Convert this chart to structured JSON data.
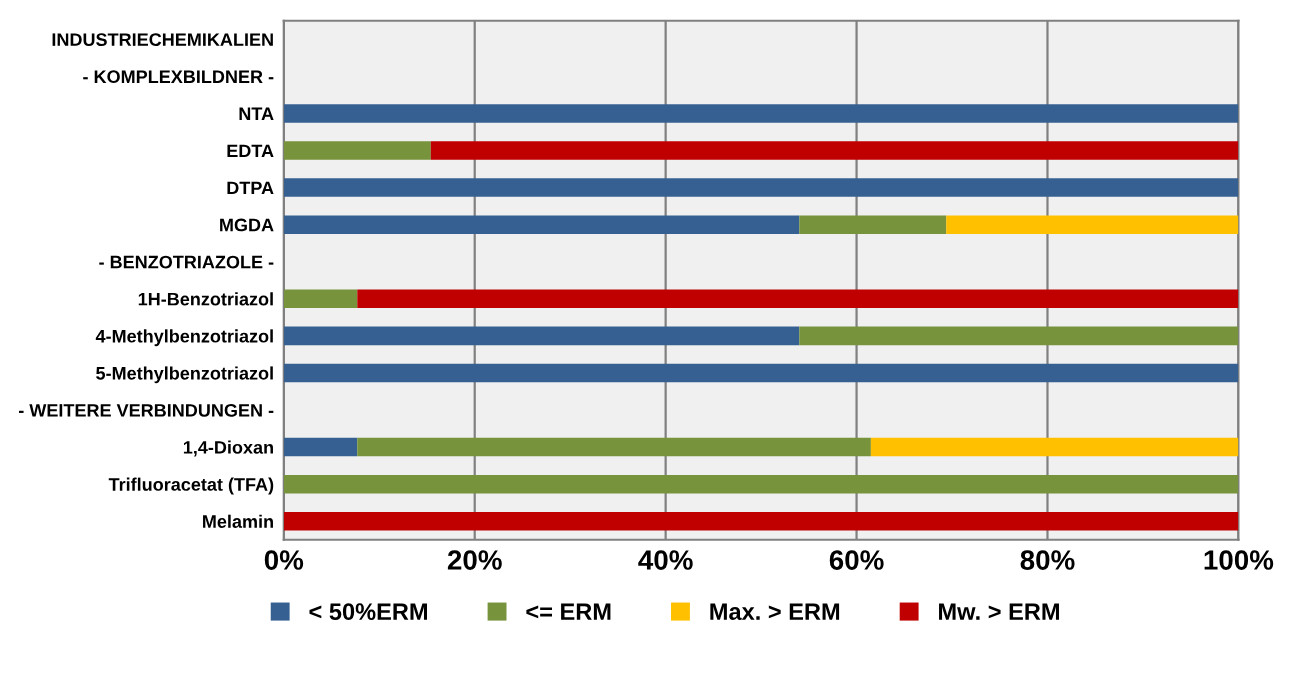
{
  "chart_data": {
    "type": "bar",
    "orientation": "horizontal",
    "stacked": true,
    "categories": [
      "INDUSTRIECHEMIKALIEN",
      "- KOMPLEXBILDNER -",
      "NTA",
      "EDTA",
      "DTPA",
      "MGDA",
      "- BENZOTRIAZOLE -",
      "1H-Benzotriazol",
      "4-Methylbenzotriazol",
      "5-Methylbenzotriazol",
      "- WEITERE VERBINDUNGEN -",
      "1,4-Dioxan",
      "Trifluoracetat (TFA)",
      "Melamin"
    ],
    "series": [
      {
        "name": "< 50%ERM",
        "color": "#376092",
        "values": [
          null,
          null,
          100,
          0,
          100,
          54,
          null,
          0,
          54,
          100,
          null,
          7.7,
          0,
          0
        ]
      },
      {
        "name": "<= ERM",
        "color": "#77933c",
        "values": [
          null,
          null,
          0,
          15.4,
          0,
          15.4,
          null,
          7.7,
          46,
          0,
          null,
          53.8,
          100,
          0
        ]
      },
      {
        "name": "Max. > ERM",
        "color": "#ffc000",
        "values": [
          null,
          null,
          0,
          0,
          0,
          30.6,
          null,
          0,
          0,
          0,
          null,
          38.5,
          0,
          0
        ]
      },
      {
        "name": "Mw. > ERM",
        "color": "#c00000",
        "values": [
          null,
          null,
          0,
          84.6,
          0,
          0,
          null,
          92.3,
          0,
          0,
          null,
          0,
          0,
          100
        ]
      }
    ],
    "xlim": [
      0,
      100
    ],
    "xticks": [
      {
        "value": 0,
        "label": "0%"
      },
      {
        "value": 20,
        "label": "20%"
      },
      {
        "value": 40,
        "label": "40%"
      },
      {
        "value": 60,
        "label": "60%"
      },
      {
        "value": 80,
        "label": "80%"
      },
      {
        "value": 100,
        "label": "100%"
      }
    ],
    "grid": "x",
    "legend": "bottom"
  }
}
